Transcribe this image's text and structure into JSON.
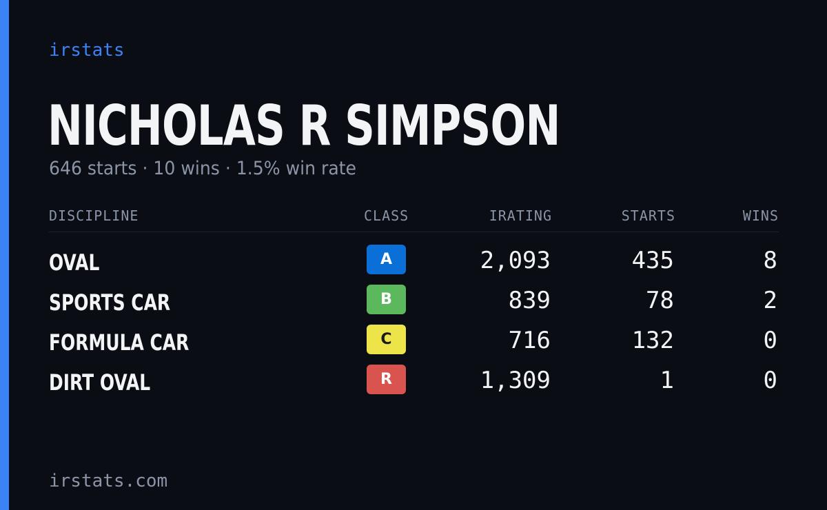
{
  "brand": "irstats",
  "driver": {
    "name": "NICHOLAS R SIMPSON",
    "summary": "646 starts · 10 wins · 1.5% win rate"
  },
  "table": {
    "headers": {
      "discipline": "DISCIPLINE",
      "class": "CLASS",
      "irating": "IRATING",
      "starts": "STARTS",
      "wins": "WINS"
    },
    "rows": [
      {
        "discipline": "OVAL",
        "class": "A",
        "class_color": "#0a6fd6",
        "class_text_color": "#ffffff",
        "irating": "2,093",
        "starts": "435",
        "wins": "8"
      },
      {
        "discipline": "SPORTS CAR",
        "class": "B",
        "class_color": "#5bb85c",
        "class_text_color": "#ffffff",
        "irating": "839",
        "starts": "78",
        "wins": "2"
      },
      {
        "discipline": "FORMULA CAR",
        "class": "C",
        "class_color": "#ede44a",
        "class_text_color": "#1a1a1a",
        "irating": "716",
        "starts": "132",
        "wins": "0"
      },
      {
        "discipline": "DIRT OVAL",
        "class": "R",
        "class_color": "#d9534f",
        "class_text_color": "#ffffff",
        "irating": "1,309",
        "starts": "1",
        "wins": "0"
      }
    ]
  },
  "footer": "irstats.com",
  "colors": {
    "background": "#0a0d14",
    "accent": "#3b82f6",
    "text": "#f3f4f6",
    "muted": "#8b95a7"
  }
}
